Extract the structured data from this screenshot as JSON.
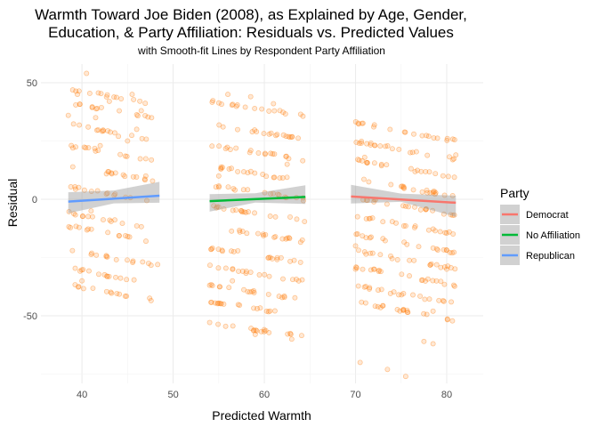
{
  "chart_data": {
    "type": "scatter",
    "title_line1": "Warmth Toward Joe Biden (2008), as Explained by Age, Gender,",
    "title_line2": "Education, & Party Affiliation: Residuals vs. Predicted Values",
    "subtitle": "with Smooth-fit Lines by Respondent Party Affiliation",
    "xlabel": "Predicted Warmth",
    "ylabel": "Residual",
    "xlim": [
      35.5,
      84
    ],
    "ylim": [
      -79,
      58
    ],
    "x_ticks": [
      40,
      50,
      60,
      70,
      80
    ],
    "y_ticks": [
      50,
      0,
      -50
    ],
    "x_tick_labels": [
      "40",
      "50",
      "60",
      "70",
      "80"
    ],
    "y_tick_labels": [
      "50",
      "0",
      "-50"
    ],
    "grid": true,
    "point_color": "#FF7F0E",
    "legend": {
      "title": "Party",
      "position": "right",
      "items": [
        {
          "label": "Democrat",
          "color": "#F8766D"
        },
        {
          "label": "No Affiliation",
          "color": "#00BA38"
        },
        {
          "label": "Republican",
          "color": "#619CFF"
        }
      ]
    },
    "point_clusters": [
      {
        "x_range": [
          38.5,
          48
        ],
        "y_intercepts": [
          -40,
          -33,
          -25,
          -15,
          -9,
          2,
          11,
          20,
          29,
          38,
          44
        ],
        "slope": -0.72,
        "count": 14,
        "extra_points": [
          [
            39.5,
            45
          ],
          [
            40.5,
            54
          ],
          [
            45.5,
            45
          ],
          [
            43,
            42
          ],
          [
            41.5,
            35
          ],
          [
            46.5,
            38
          ],
          [
            48.3,
            -28
          ],
          [
            40,
            -35
          ],
          [
            44,
            27
          ],
          [
            46,
            30
          ],
          [
            38.5,
            36
          ],
          [
            39,
            22
          ],
          [
            42,
            23
          ],
          [
            45,
            25
          ],
          [
            47,
            10
          ],
          [
            41,
            -5
          ]
        ]
      },
      {
        "x_range": [
          54,
          64.5
        ],
        "y_intercepts": [
          -56,
          -47,
          -40,
          -32,
          -24,
          -15,
          -6,
          3,
          11,
          20,
          29,
          39
        ],
        "slope": -0.6,
        "count": 18,
        "extra_points": [
          [
            56,
            45
          ],
          [
            58.5,
            44
          ],
          [
            61,
            41
          ],
          [
            55,
            10
          ],
          [
            57.5,
            -5
          ],
          [
            63,
            -60
          ],
          [
            59,
            -58
          ],
          [
            60.5,
            -25
          ],
          [
            62.5,
            15
          ],
          [
            56.5,
            -35
          ]
        ]
      },
      {
        "x_range": [
          70,
          81
        ],
        "y_intercepts": [
          -48,
          -41,
          -33,
          -26,
          -19,
          -11,
          -3,
          5,
          13,
          21,
          29
        ],
        "slope": -0.7,
        "count": 20,
        "extra_points": [
          [
            70.5,
            -70
          ],
          [
            73.5,
            -73
          ],
          [
            75.5,
            -76
          ],
          [
            77.5,
            -61
          ],
          [
            78.5,
            -62
          ],
          [
            78.5,
            -48
          ],
          [
            80,
            -30
          ],
          [
            81,
            19
          ],
          [
            71,
            18
          ],
          [
            70,
            -20
          ],
          [
            72,
            -30
          ],
          [
            76,
            20
          ],
          [
            70,
            -30
          ]
        ]
      }
    ],
    "smooth_lines": [
      {
        "party": "Republican",
        "color": "#619CFF",
        "x": [
          38.5,
          48.5
        ],
        "y": [
          -1,
          1.5
        ],
        "band": [
          [
            38.5,
            -5,
            4
          ],
          [
            43.5,
            -2,
            3.5
          ],
          [
            48.5,
            -3,
            6
          ]
        ]
      },
      {
        "party": "No Affiliation",
        "color": "#00BA38",
        "x": [
          54,
          64.5
        ],
        "y": [
          -0.8,
          1
        ],
        "band": [
          [
            54,
            -4.5,
            3
          ],
          [
            59,
            -1.5,
            2.5
          ],
          [
            64.5,
            -3,
            5
          ]
        ]
      },
      {
        "party": "Democrat",
        "color": "#F8766D",
        "x": [
          69.5,
          81
        ],
        "y": [
          1.2,
          -1.5
        ],
        "band": [
          [
            69.5,
            -3,
            5
          ],
          [
            75,
            -1,
            2.5
          ],
          [
            81,
            -6,
            3
          ]
        ]
      }
    ]
  }
}
